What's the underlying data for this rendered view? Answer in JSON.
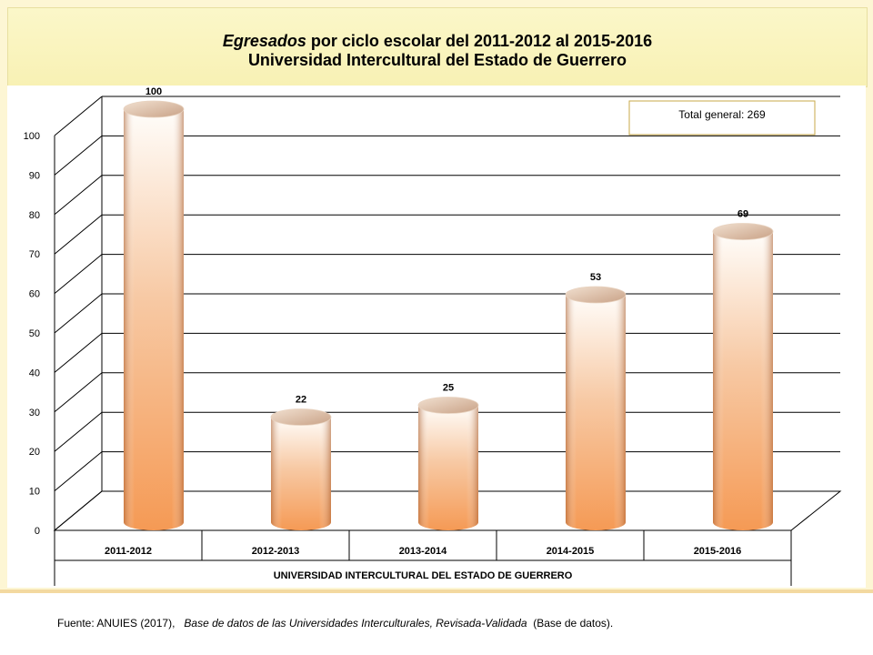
{
  "title": {
    "emphasis": "Egresados",
    "rest": " por ciclo escolar del 2011-2012 al 2015-2016",
    "subtitle": "Universidad Intercultural del Estado de Guerrero"
  },
  "total_box": "Total general: 269",
  "source": {
    "prefix": "Fuente: ANUIES (2017),",
    "title": "Base de datos de las Universidades Interculturales, Revisada-Validada",
    "suffix": "(Base de datos)."
  },
  "colors": {
    "bar_light": "#fffdfa",
    "bar_mid": "#f7c9a4",
    "bar_dark": "#f59a55",
    "bar_edge": "#b86a3a",
    "grid": "#000000"
  },
  "chart_data": {
    "type": "bar",
    "style": "3d-cylinder",
    "categories": [
      "2011-2012",
      "2012-2013",
      "2013-2014",
      "2014-2015",
      "2015-2016"
    ],
    "values": [
      100,
      22,
      25,
      53,
      69
    ],
    "data_labels": [
      "100",
      "22",
      "25",
      "53",
      "69"
    ],
    "xlabel": "UNIVERSIDAD INTERCULTURAL DEL ESTADO DE GUERRERO",
    "ylabel": "",
    "ylim": [
      0,
      100
    ],
    "yticks": [
      0,
      10,
      20,
      30,
      40,
      50,
      60,
      70,
      80,
      90,
      100
    ],
    "grid": true,
    "legend": "none"
  }
}
